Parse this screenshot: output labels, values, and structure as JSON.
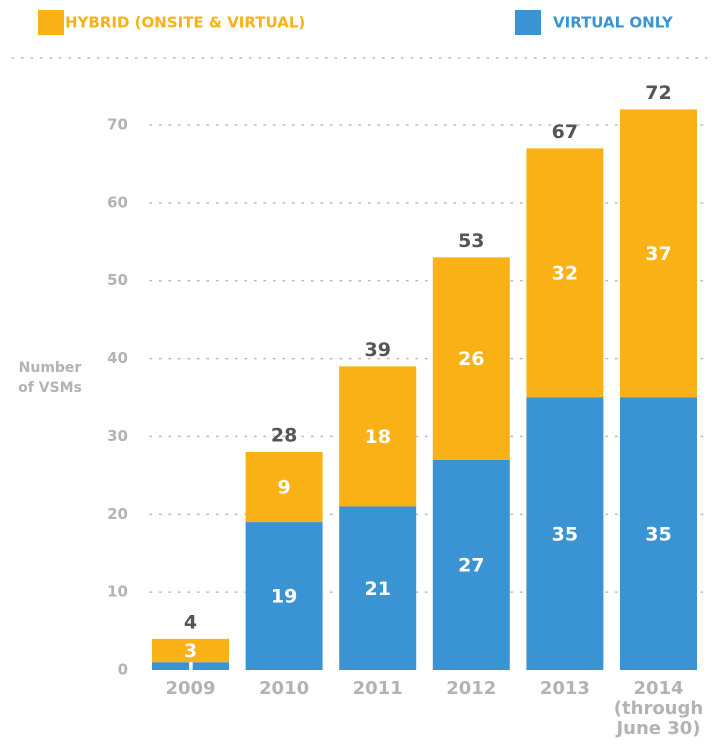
{
  "chart_data": {
    "type": "stacked_bar",
    "y_label": "Number\nof VSMs",
    "categories": [
      "2009",
      "2010",
      "2011",
      "2012",
      "2013",
      "2014\n(through\nJune 30)"
    ],
    "series": [
      {
        "name": "VIRTUAL ONLY",
        "color": "#3a94d4",
        "values": [
          1,
          19,
          21,
          27,
          35,
          35
        ]
      },
      {
        "name": "HYBRID (ONSITE & VIRTUAL)",
        "color": "#f9b116",
        "values": [
          3,
          9,
          18,
          26,
          32,
          37
        ]
      }
    ],
    "totals": [
      4,
      28,
      39,
      53,
      67,
      72
    ],
    "ylim": [
      0,
      70
    ],
    "yticks": [
      0,
      10,
      20,
      30,
      40,
      50,
      60,
      70
    ],
    "grid": true
  }
}
